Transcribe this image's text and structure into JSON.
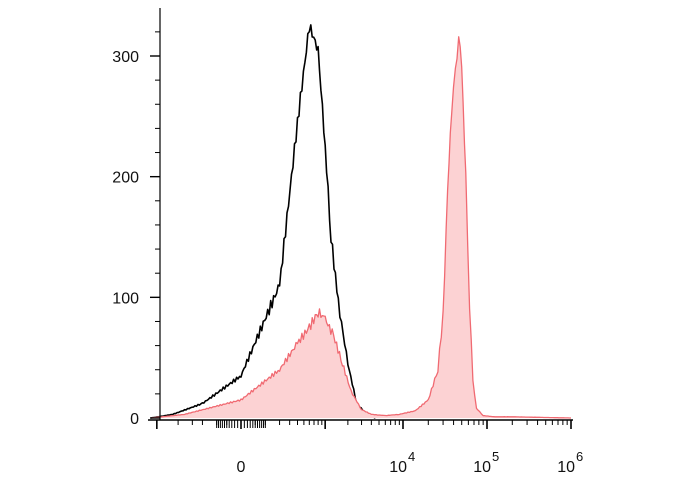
{
  "chart_data": {
    "type": "area",
    "title": "",
    "xlabel": "",
    "ylabel": "",
    "x_scale": "biexponential",
    "ylim": [
      0,
      330
    ],
    "y_ticks": [
      {
        "value": 0,
        "label": "0"
      },
      {
        "value": 100,
        "label": "100"
      },
      {
        "value": 200,
        "label": "200"
      },
      {
        "value": 300,
        "label": "300"
      }
    ],
    "x_ticks": [
      {
        "value": 0,
        "base": "0",
        "exp": ""
      },
      {
        "value": 10000,
        "base": "10",
        "exp": "4"
      },
      {
        "value": 100000,
        "base": "10",
        "exp": "5"
      },
      {
        "value": 1000000,
        "base": "10",
        "exp": "6"
      }
    ],
    "series": [
      {
        "style": "line",
        "color": "#000000",
        "x": [
          -1200,
          -600,
          -200,
          0,
          200,
          400,
          600,
          800,
          1000,
          1200,
          1500,
          2000,
          2600,
          3500,
          4500
        ],
        "y": [
          0,
          3,
          12,
          35,
          110,
          245,
          325,
          305,
          225,
          150,
          95,
          45,
          12,
          3,
          0
        ]
      },
      {
        "style": "filled",
        "color": "#f06a72",
        "fill": "#fcd2d3",
        "x": [
          -1200,
          -400,
          0,
          200,
          400,
          600,
          800,
          1000,
          1300,
          1700,
          2200,
          3000,
          4000,
          6000,
          9000,
          14000,
          20000,
          26000,
          30000,
          34000,
          38000,
          42000,
          46000,
          50000,
          56000,
          62000,
          68000,
          75000,
          90000,
          120000,
          200000,
          1000000
        ],
        "y": [
          0,
          3,
          15,
          40,
          62,
          75,
          88,
          82,
          68,
          45,
          22,
          7,
          3,
          2,
          3,
          6,
          15,
          40,
          85,
          190,
          255,
          285,
          320,
          290,
          200,
          95,
          30,
          8,
          2,
          1,
          1,
          0
        ]
      }
    ]
  }
}
